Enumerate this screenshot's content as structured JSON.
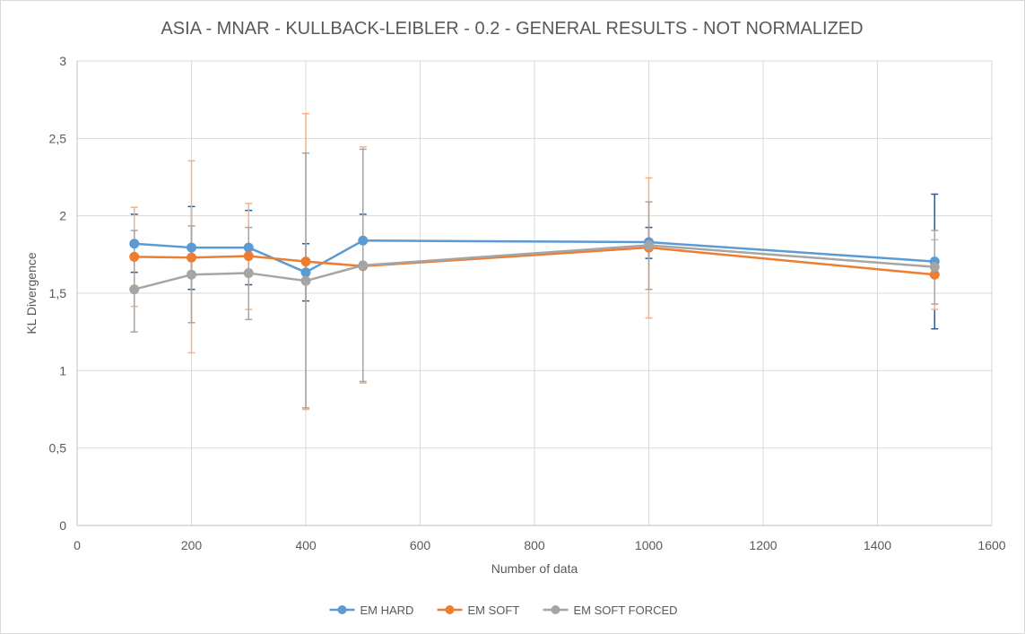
{
  "chart_data": {
    "type": "line",
    "title": "ASIA - MNAR - KULLBACK-LEIBLER - 0.2 - GENERAL RESULTS - NOT NORMALIZED",
    "xlabel": "Number of data",
    "ylabel": "KL Divergence",
    "xlim": [
      0,
      1600
    ],
    "ylim": [
      0,
      3
    ],
    "x_ticks": [
      0,
      200,
      400,
      600,
      800,
      1000,
      1200,
      1400,
      1600
    ],
    "y_ticks": [
      "0",
      "0,5",
      "1",
      "1,5",
      "2",
      "2,5",
      "3"
    ],
    "grid": true,
    "legend_position": "bottom",
    "x": [
      100,
      200,
      300,
      400,
      500,
      1000,
      1500
    ],
    "series": [
      {
        "name": "EM HARD",
        "color": "#5b9bd5",
        "error_color": "#2e5c8a",
        "values": [
          1.82,
          1.795,
          1.795,
          1.635,
          1.84,
          1.83,
          1.705
        ],
        "err_high": [
          2.01,
          2.06,
          2.035,
          1.82,
          2.01,
          1.925,
          2.14
        ],
        "err_low": [
          1.635,
          1.525,
          1.555,
          1.45,
          1.68,
          1.725,
          1.27
        ]
      },
      {
        "name": "EM SOFT",
        "color": "#ed7d31",
        "error_color": "#f4b183",
        "values": [
          1.735,
          1.73,
          1.74,
          1.705,
          1.675,
          1.795,
          1.62
        ],
        "err_high": [
          2.055,
          2.355,
          2.08,
          2.66,
          2.445,
          2.245,
          1.845
        ],
        "err_low": [
          1.415,
          1.115,
          1.395,
          0.75,
          0.92,
          1.34,
          1.395
        ]
      },
      {
        "name": "EM SOFT FORCED",
        "color": "#a5a5a5",
        "error_color": "#a5a5a5",
        "values": [
          1.525,
          1.62,
          1.63,
          1.58,
          1.68,
          1.81,
          1.67
        ],
        "err_high": [
          1.905,
          1.935,
          1.925,
          2.405,
          2.43,
          2.09,
          1.905
        ],
        "err_low": [
          1.25,
          1.31,
          1.33,
          0.76,
          0.93,
          1.525,
          1.43
        ]
      }
    ]
  }
}
